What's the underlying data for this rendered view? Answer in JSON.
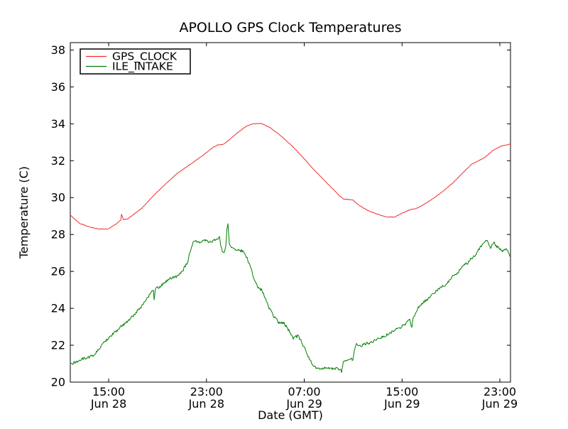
{
  "figure": {
    "title": "APOLLO GPS Clock Temperatures",
    "xlabel": "Date (GMT)",
    "ylabel": "Temperature (C)",
    "background": "#ffffff",
    "spine_color": "#000000"
  },
  "legend": {
    "items": [
      {
        "label": "GPS_CLOCK",
        "color": "#f22c2c"
      },
      {
        "label": "ILE_INTAKE",
        "color": "#007d00"
      }
    ]
  },
  "chart_data": {
    "type": "line",
    "title": "APOLLO GPS Clock Temperatures",
    "xlabel": "Date (GMT)",
    "ylabel": "Temperature (C)",
    "x_unit": "hours since Jun 28 00:00 GMT",
    "xlim": [
      11.86,
      47.87
    ],
    "ylim": [
      20,
      38.4
    ],
    "grid": false,
    "legend_position": "upper left",
    "yticks": [
      20,
      22,
      24,
      26,
      28,
      30,
      32,
      34,
      36,
      38
    ],
    "xticks": [
      {
        "t": 15,
        "line1": "15:00",
        "line2": "Jun 28"
      },
      {
        "t": 23,
        "line1": "23:00",
        "line2": "Jun 28"
      },
      {
        "t": 31,
        "line1": "07:00",
        "line2": "Jun 29"
      },
      {
        "t": 39,
        "line1": "15:00",
        "line2": "Jun 29"
      },
      {
        "t": 47,
        "line1": "23:00",
        "line2": "Jun 29"
      }
    ],
    "series": [
      {
        "name": "GPS_CLOCK",
        "color": "#f22c2c",
        "noise": 0.012,
        "points": [
          [
            11.86,
            29.05
          ],
          [
            12.62,
            28.6
          ],
          [
            13.37,
            28.42
          ],
          [
            14.13,
            28.3
          ],
          [
            14.94,
            28.3
          ],
          [
            15.58,
            28.55
          ],
          [
            15.93,
            28.75
          ],
          [
            16.0,
            28.8
          ],
          [
            16.05,
            29.1
          ],
          [
            16.22,
            28.8
          ],
          [
            16.57,
            28.85
          ],
          [
            17.67,
            29.4
          ],
          [
            18.66,
            30.1
          ],
          [
            19.59,
            30.7
          ],
          [
            20.58,
            31.3
          ],
          [
            21.56,
            31.75
          ],
          [
            22.73,
            32.3
          ],
          [
            23.48,
            32.7
          ],
          [
            23.89,
            32.85
          ],
          [
            24.2,
            32.87
          ],
          [
            24.41,
            32.9
          ],
          [
            24.82,
            33.1
          ],
          [
            25.51,
            33.5
          ],
          [
            26.21,
            33.85
          ],
          [
            26.79,
            34.0
          ],
          [
            27.49,
            34.02
          ],
          [
            28.18,
            33.8
          ],
          [
            29.0,
            33.4
          ],
          [
            29.92,
            32.85
          ],
          [
            30.8,
            32.25
          ],
          [
            31.67,
            31.6
          ],
          [
            32.54,
            31.0
          ],
          [
            33.29,
            30.5
          ],
          [
            33.87,
            30.1
          ],
          [
            34.22,
            29.92
          ],
          [
            34.98,
            29.87
          ],
          [
            35.44,
            29.6
          ],
          [
            36.2,
            29.3
          ],
          [
            37.01,
            29.1
          ],
          [
            37.7,
            28.95
          ],
          [
            38.4,
            28.95
          ],
          [
            38.98,
            29.15
          ],
          [
            39.68,
            29.35
          ],
          [
            40.14,
            29.4
          ],
          [
            40.72,
            29.6
          ],
          [
            41.54,
            29.95
          ],
          [
            42.35,
            30.35
          ],
          [
            43.16,
            30.8
          ],
          [
            43.98,
            31.35
          ],
          [
            44.67,
            31.8
          ],
          [
            45.25,
            32.0
          ],
          [
            45.72,
            32.15
          ],
          [
            46.41,
            32.55
          ],
          [
            47.11,
            32.8
          ],
          [
            47.87,
            32.9
          ]
        ]
      },
      {
        "name": "ILE_INTAKE",
        "color": "#007d00",
        "noise": 0.075,
        "points": [
          [
            11.86,
            20.95
          ],
          [
            12.85,
            21.25
          ],
          [
            13.78,
            21.45
          ],
          [
            14.83,
            22.3
          ],
          [
            15.75,
            22.85
          ],
          [
            16.74,
            23.4
          ],
          [
            17.73,
            24.15
          ],
          [
            18.43,
            24.8
          ],
          [
            18.66,
            25.0
          ],
          [
            18.72,
            24.5
          ],
          [
            18.83,
            25.05
          ],
          [
            19.24,
            25.2
          ],
          [
            19.94,
            25.6
          ],
          [
            20.63,
            25.75
          ],
          [
            21.1,
            26.1
          ],
          [
            21.45,
            26.5
          ],
          [
            21.74,
            27.2
          ],
          [
            21.97,
            27.65
          ],
          [
            22.38,
            27.6
          ],
          [
            22.84,
            27.7
          ],
          [
            23.25,
            27.6
          ],
          [
            23.65,
            27.7
          ],
          [
            23.94,
            27.75
          ],
          [
            24.06,
            27.85
          ],
          [
            24.18,
            27.3
          ],
          [
            24.29,
            27.15
          ],
          [
            24.47,
            27.05
          ],
          [
            24.58,
            27.3
          ],
          [
            24.67,
            28.3
          ],
          [
            24.76,
            28.65
          ],
          [
            24.87,
            27.5
          ],
          [
            24.99,
            27.3
          ],
          [
            25.28,
            27.2
          ],
          [
            25.63,
            27.15
          ],
          [
            25.98,
            27.1
          ],
          [
            26.27,
            26.8
          ],
          [
            26.44,
            26.5
          ],
          [
            26.67,
            26.1
          ],
          [
            26.91,
            25.5
          ],
          [
            27.2,
            25.15
          ],
          [
            27.49,
            25.0
          ],
          [
            27.78,
            24.6
          ],
          [
            28.12,
            24.0
          ],
          [
            28.53,
            23.55
          ],
          [
            28.94,
            23.2
          ],
          [
            29.34,
            23.2
          ],
          [
            29.69,
            22.85
          ],
          [
            30.1,
            22.4
          ],
          [
            30.5,
            22.5
          ],
          [
            30.91,
            22.0
          ],
          [
            31.26,
            21.5
          ],
          [
            31.61,
            21.0
          ],
          [
            31.9,
            20.8
          ],
          [
            32.25,
            20.75
          ],
          [
            32.71,
            20.8
          ],
          [
            33.17,
            20.7
          ],
          [
            33.58,
            20.75
          ],
          [
            33.99,
            20.72
          ],
          [
            34.05,
            20.45
          ],
          [
            34.19,
            21.15
          ],
          [
            34.57,
            21.2
          ],
          [
            34.98,
            21.25
          ],
          [
            35.09,
            21.7
          ],
          [
            35.27,
            22.05
          ],
          [
            35.38,
            21.95
          ],
          [
            35.73,
            22.0
          ],
          [
            36.14,
            22.1
          ],
          [
            36.49,
            22.15
          ],
          [
            36.89,
            22.3
          ],
          [
            37.3,
            22.4
          ],
          [
            37.7,
            22.55
          ],
          [
            38.11,
            22.7
          ],
          [
            38.52,
            22.85
          ],
          [
            38.92,
            23.0
          ],
          [
            39.27,
            23.15
          ],
          [
            39.62,
            23.4
          ],
          [
            39.8,
            22.95
          ],
          [
            39.91,
            23.5
          ],
          [
            40.38,
            24.1
          ],
          [
            40.78,
            24.35
          ],
          [
            41.13,
            24.5
          ],
          [
            41.54,
            24.8
          ],
          [
            41.95,
            25.0
          ],
          [
            42.35,
            25.2
          ],
          [
            42.7,
            25.35
          ],
          [
            43.11,
            25.7
          ],
          [
            43.57,
            25.95
          ],
          [
            43.98,
            26.3
          ],
          [
            44.33,
            26.45
          ],
          [
            44.67,
            26.7
          ],
          [
            45.02,
            26.9
          ],
          [
            45.37,
            27.3
          ],
          [
            45.66,
            27.5
          ],
          [
            45.95,
            27.7
          ],
          [
            46.24,
            27.3
          ],
          [
            46.53,
            27.55
          ],
          [
            46.82,
            27.3
          ],
          [
            47.17,
            27.1
          ],
          [
            47.46,
            27.2
          ],
          [
            47.69,
            27.05
          ],
          [
            47.87,
            26.8
          ]
        ]
      }
    ]
  }
}
